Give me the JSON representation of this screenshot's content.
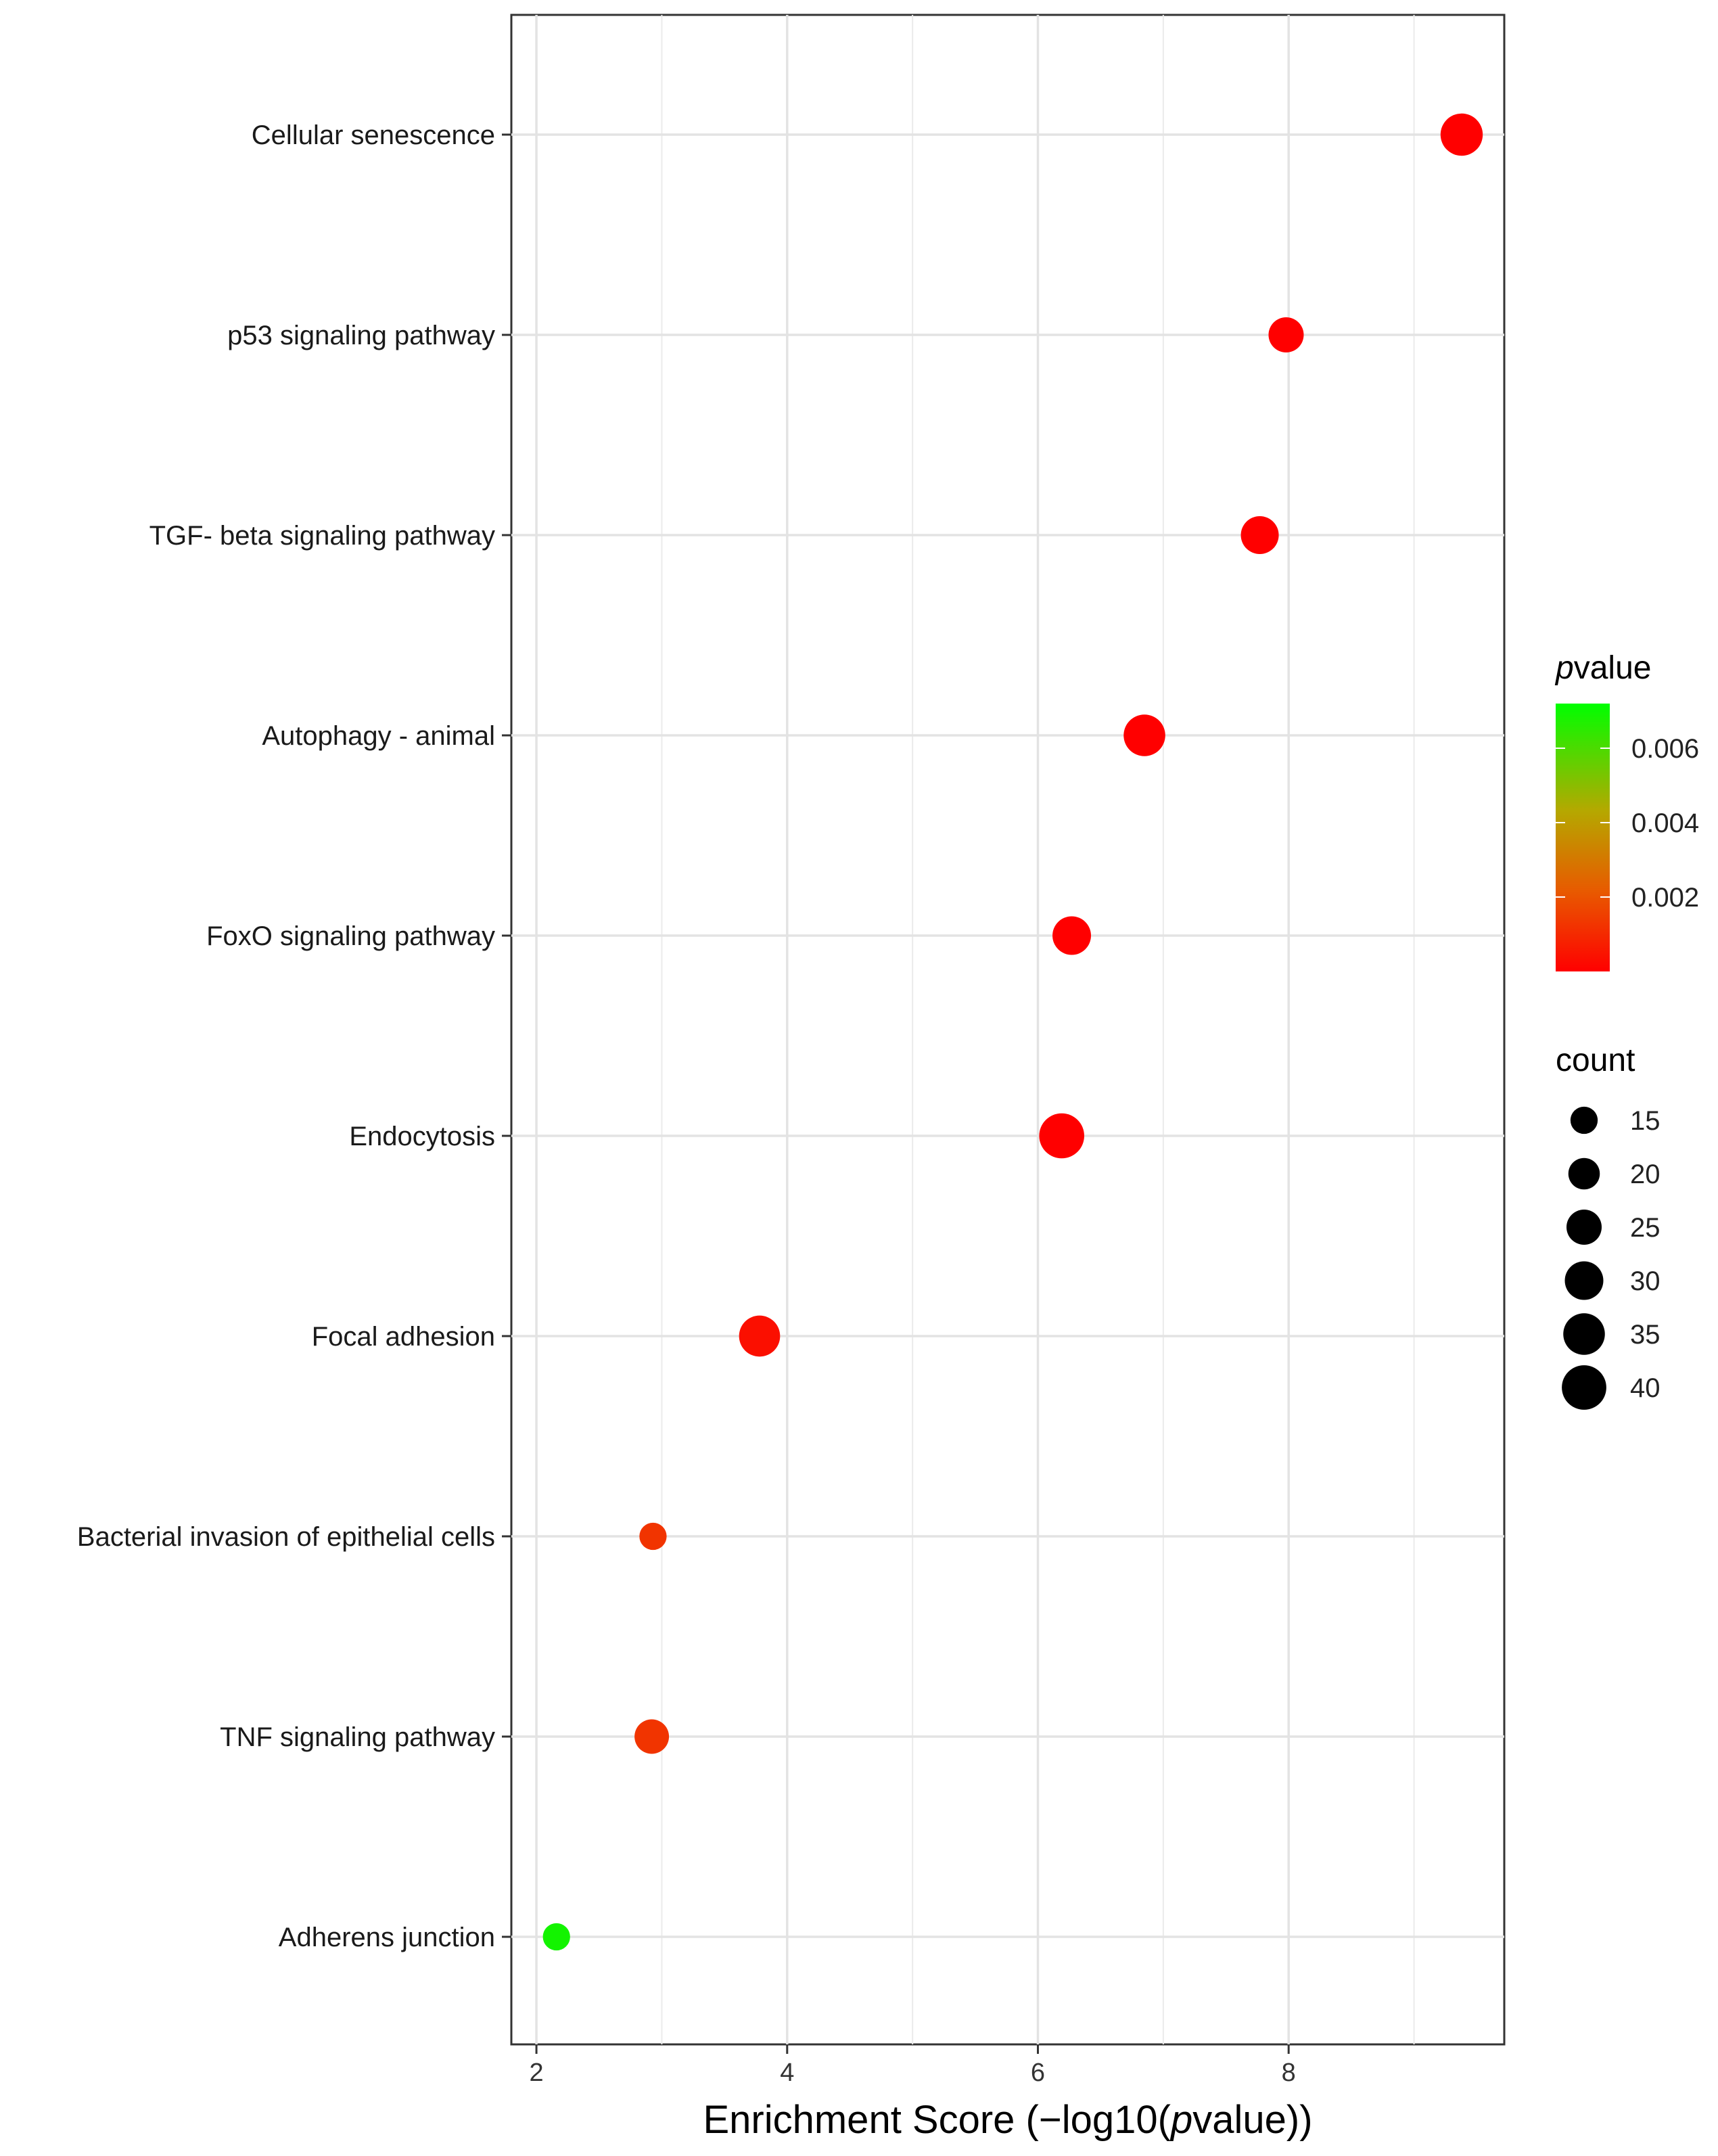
{
  "chart_data": {
    "type": "scatter",
    "title": "",
    "xlabel_prefix": "Enrichment Score (−log10(",
    "xlabel_italic": "p",
    "xlabel_suffix": "value))",
    "ylabel": "",
    "xlim": [
      1.8,
      9.72
    ],
    "xticks": [
      "2",
      "4",
      "6",
      "8"
    ],
    "xtick_values": [
      2,
      4,
      6,
      8
    ],
    "grid": true,
    "categories": [
      "Cellular senescence",
      "p53 signaling pathway",
      "TGF- beta signaling pathway",
      "Autophagy -  animal",
      "FoxO signaling pathway",
      "Endocytosis",
      "Focal adhesion",
      "Bacterial invasion of epithelial cells",
      "TNF signaling pathway",
      "Adherens junction"
    ],
    "points": [
      {
        "pathway": "Cellular senescence",
        "x": 9.38,
        "count": 36,
        "pvalue": 0.0
      },
      {
        "pathway": "p53 signaling pathway",
        "x": 7.98,
        "count": 25,
        "pvalue": 0.0
      },
      {
        "pathway": "TGF- beta signaling pathway",
        "x": 7.77,
        "count": 29,
        "pvalue": 0.0
      },
      {
        "pathway": "Autophagy -  animal",
        "x": 6.85,
        "count": 35,
        "pvalue": 0.0
      },
      {
        "pathway": "FoxO signaling pathway",
        "x": 6.27,
        "count": 30,
        "pvalue": 0.0
      },
      {
        "pathway": "Endocytosis",
        "x": 6.19,
        "count": 41,
        "pvalue": 0.0
      },
      {
        "pathway": "Focal adhesion",
        "x": 3.78,
        "count": 34,
        "pvalue": 0.0002
      },
      {
        "pathway": "Bacterial invasion of epithelial cells",
        "x": 2.93,
        "count": 15,
        "pvalue": 0.0012
      },
      {
        "pathway": "TNF signaling pathway",
        "x": 2.92,
        "count": 24,
        "pvalue": 0.0012
      },
      {
        "pathway": "Adherens junction",
        "x": 2.16,
        "count": 15,
        "pvalue": 0.0069
      }
    ],
    "legend_color": {
      "title_italic": "p",
      "title_rest": "value",
      "ticks": [
        "0.006",
        "0.004",
        "0.002"
      ],
      "tick_values": [
        0.006,
        0.004,
        0.002
      ],
      "range": [
        0.0,
        0.0072
      ],
      "low_color": "#ff0000",
      "mid_color": "#b5a800",
      "high_color": "#00ff00"
    },
    "legend_size": {
      "title": "count",
      "labels": [
        "15",
        "20",
        "25",
        "30",
        "35",
        "40"
      ],
      "values": [
        15,
        20,
        25,
        30,
        35,
        40
      ]
    },
    "legend_placement": "right"
  }
}
